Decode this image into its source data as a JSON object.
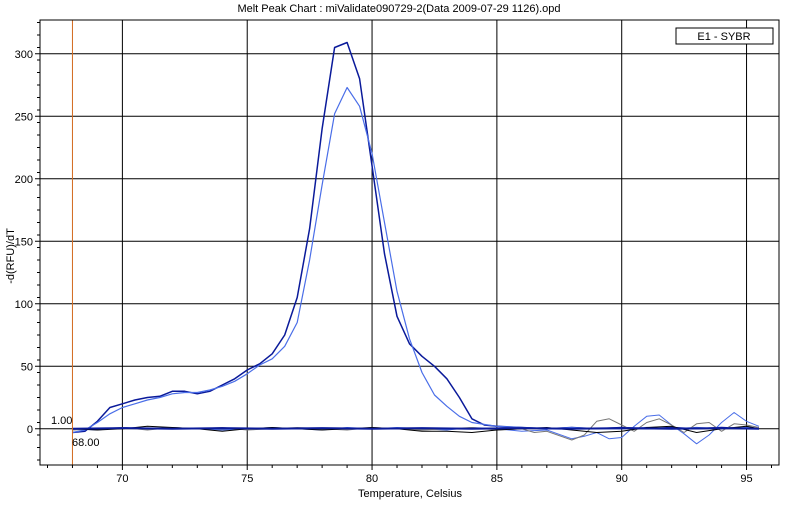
{
  "chart_data": {
    "type": "line",
    "title": "Melt Peak Chart : miValidate090729-2(Data 2009-07-29 1126).opd",
    "xlabel": "Temperature, Celsius",
    "ylabel": "-d(RFU)/dT",
    "xlim": [
      66.7,
      96.3
    ],
    "ylim": [
      -29,
      327
    ],
    "x_ticks": [
      70,
      75,
      80,
      85,
      90,
      95
    ],
    "y_ticks": [
      0,
      50,
      100,
      150,
      200,
      250,
      300
    ],
    "grid": true,
    "legend": {
      "position": "top-right",
      "entries": [
        "E1 - SYBR"
      ]
    },
    "threshold": {
      "value": 1.0,
      "label": "1.00"
    },
    "marker": {
      "x": 68.0,
      "label": "68.00"
    },
    "colors": {
      "dark_blue": "#0a1a9a",
      "light_blue": "#4a6ee8",
      "black": "#000000",
      "gray": "#777777",
      "marker": "#d2691e"
    },
    "series": [
      {
        "color": "dark_blue",
        "width": 1.5,
        "points": [
          [
            68.0,
            -3
          ],
          [
            68.5,
            -2
          ],
          [
            69,
            6
          ],
          [
            69.5,
            17
          ],
          [
            70,
            20
          ],
          [
            70.5,
            23
          ],
          [
            71,
            25
          ],
          [
            71.5,
            26
          ],
          [
            72,
            30
          ],
          [
            72.5,
            30
          ],
          [
            73,
            28
          ],
          [
            73.5,
            30
          ],
          [
            74,
            35
          ],
          [
            74.5,
            40
          ],
          [
            75,
            47
          ],
          [
            75.5,
            52
          ],
          [
            76,
            60
          ],
          [
            76.5,
            75
          ],
          [
            77,
            105
          ],
          [
            77.5,
            160
          ],
          [
            78,
            240
          ],
          [
            78.5,
            305
          ],
          [
            79,
            309
          ],
          [
            79.5,
            280
          ],
          [
            80,
            210
          ],
          [
            80.5,
            140
          ],
          [
            81,
            90
          ],
          [
            81.5,
            68
          ],
          [
            82,
            58
          ],
          [
            82.5,
            50
          ],
          [
            83,
            40
          ],
          [
            83.5,
            25
          ],
          [
            84,
            8
          ],
          [
            84.5,
            3
          ],
          [
            85,
            2
          ],
          [
            86,
            1
          ],
          [
            87,
            0
          ],
          [
            88,
            1
          ],
          [
            89,
            0
          ],
          [
            90,
            1
          ],
          [
            91,
            0
          ],
          [
            92,
            1
          ],
          [
            93,
            0
          ],
          [
            94,
            1
          ],
          [
            95,
            0
          ],
          [
            95.5,
            0
          ]
        ]
      },
      {
        "color": "light_blue",
        "width": 1.2,
        "points": [
          [
            68.0,
            -3
          ],
          [
            68.5,
            -1
          ],
          [
            69,
            5
          ],
          [
            69.5,
            12
          ],
          [
            70,
            17
          ],
          [
            70.5,
            20
          ],
          [
            71,
            23
          ],
          [
            71.5,
            25
          ],
          [
            72,
            28
          ],
          [
            72.5,
            29
          ],
          [
            73,
            29
          ],
          [
            73.5,
            31
          ],
          [
            74,
            34
          ],
          [
            74.5,
            38
          ],
          [
            75,
            44
          ],
          [
            75.5,
            51
          ],
          [
            76,
            56
          ],
          [
            76.5,
            66
          ],
          [
            77,
            85
          ],
          [
            77.5,
            135
          ],
          [
            78,
            195
          ],
          [
            78.5,
            252
          ],
          [
            79,
            273
          ],
          [
            79.5,
            258
          ],
          [
            80,
            220
          ],
          [
            80.5,
            165
          ],
          [
            81,
            110
          ],
          [
            81.5,
            72
          ],
          [
            82,
            45
          ],
          [
            82.5,
            27
          ],
          [
            83,
            18
          ],
          [
            83.5,
            10
          ],
          [
            84,
            5
          ],
          [
            85,
            2
          ],
          [
            86,
            1
          ],
          [
            87,
            0
          ],
          [
            88,
            1
          ],
          [
            89,
            0
          ],
          [
            90,
            0
          ],
          [
            91,
            1
          ],
          [
            92,
            0
          ],
          [
            93,
            1
          ],
          [
            94,
            0
          ],
          [
            95,
            1
          ],
          [
            95.5,
            0
          ]
        ]
      },
      {
        "color": "light_blue",
        "width": 1.0,
        "points": [
          [
            68,
            0
          ],
          [
            69,
            -1
          ],
          [
            70,
            1
          ],
          [
            71,
            0
          ],
          [
            72,
            1
          ],
          [
            73,
            0
          ],
          [
            74,
            -1
          ],
          [
            75,
            0
          ],
          [
            76,
            1
          ],
          [
            77,
            0
          ],
          [
            78,
            -1
          ],
          [
            79,
            1
          ],
          [
            80,
            0
          ],
          [
            81,
            1
          ],
          [
            82,
            0
          ],
          [
            83,
            -1
          ],
          [
            84,
            1
          ],
          [
            85,
            0
          ],
          [
            86,
            -2
          ],
          [
            87,
            -1
          ],
          [
            88,
            -8
          ],
          [
            88.5,
            -6
          ],
          [
            89,
            -3
          ],
          [
            89.5,
            -8
          ],
          [
            90,
            -7
          ],
          [
            90.5,
            2
          ],
          [
            91,
            10
          ],
          [
            91.5,
            11
          ],
          [
            92,
            3
          ],
          [
            92.5,
            -4
          ],
          [
            93,
            -12
          ],
          [
            93.5,
            -5
          ],
          [
            94,
            5
          ],
          [
            94.5,
            13
          ],
          [
            95,
            6
          ],
          [
            95.5,
            2
          ]
        ]
      },
      {
        "color": "gray",
        "width": 1.0,
        "points": [
          [
            68,
            -1
          ],
          [
            69,
            0
          ],
          [
            70,
            1
          ],
          [
            71,
            -1
          ],
          [
            72,
            1
          ],
          [
            73,
            0
          ],
          [
            74,
            1
          ],
          [
            75,
            -1
          ],
          [
            76,
            0
          ],
          [
            77,
            1
          ],
          [
            78,
            0
          ],
          [
            79,
            -1
          ],
          [
            80,
            1
          ],
          [
            81,
            0
          ],
          [
            82,
            -1
          ],
          [
            83,
            0
          ],
          [
            84,
            1
          ],
          [
            85,
            -1
          ],
          [
            86,
            0
          ],
          [
            86.5,
            -3
          ],
          [
            87,
            -2
          ],
          [
            88,
            -9
          ],
          [
            88.5,
            -5
          ],
          [
            89,
            6
          ],
          [
            89.5,
            8
          ],
          [
            90,
            3
          ],
          [
            90.5,
            -2
          ],
          [
            91,
            5
          ],
          [
            91.5,
            8
          ],
          [
            92,
            3
          ],
          [
            92.5,
            -3
          ],
          [
            93,
            4
          ],
          [
            93.5,
            5
          ],
          [
            94,
            -2
          ],
          [
            94.5,
            4
          ],
          [
            95,
            3
          ],
          [
            95.5,
            1
          ]
        ]
      },
      {
        "color": "black",
        "width": 1.0,
        "points": [
          [
            68,
            0
          ],
          [
            69,
            -1
          ],
          [
            70,
            0
          ],
          [
            71,
            2
          ],
          [
            72,
            1
          ],
          [
            73,
            0
          ],
          [
            74,
            -2
          ],
          [
            75,
            0
          ],
          [
            76,
            1
          ],
          [
            77,
            0
          ],
          [
            78,
            -1
          ],
          [
            79,
            0
          ],
          [
            80,
            1
          ],
          [
            81,
            0
          ],
          [
            82,
            -2
          ],
          [
            83,
            -2
          ],
          [
            84,
            -3
          ],
          [
            85,
            -1
          ],
          [
            86,
            0
          ],
          [
            87,
            1
          ],
          [
            88,
            -1
          ],
          [
            89,
            -3
          ],
          [
            90,
            -2
          ],
          [
            91,
            1
          ],
          [
            92,
            2
          ],
          [
            93,
            -3
          ],
          [
            94,
            0
          ],
          [
            95,
            2
          ],
          [
            95.5,
            0
          ]
        ]
      },
      {
        "color": "dark_blue",
        "width": 2.0,
        "points": [
          [
            68,
            0
          ],
          [
            70,
            0.5
          ],
          [
            72,
            0
          ],
          [
            74,
            0.5
          ],
          [
            76,
            0
          ],
          [
            78,
            0.5
          ],
          [
            80,
            0
          ],
          [
            82,
            0.5
          ],
          [
            84,
            0
          ],
          [
            86,
            0.5
          ],
          [
            88,
            0
          ],
          [
            90,
            0.5
          ],
          [
            92,
            0
          ],
          [
            94,
            0.5
          ],
          [
            95.5,
            0
          ]
        ]
      }
    ]
  }
}
